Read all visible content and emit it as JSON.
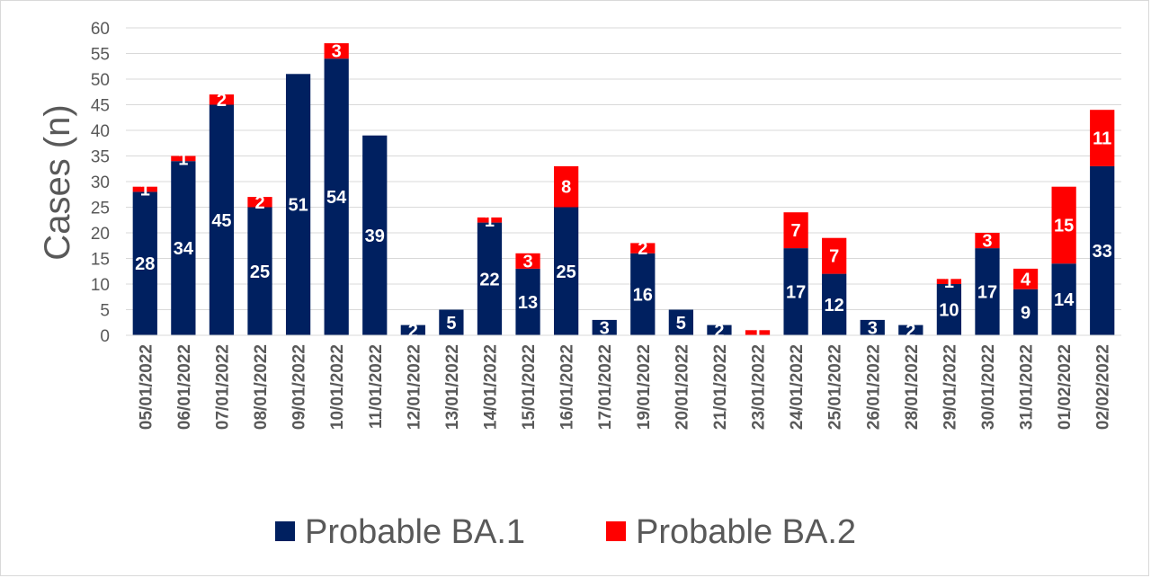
{
  "chart_data": {
    "type": "bar",
    "stacked": true,
    "title": "",
    "xlabel": "",
    "ylabel": "Cases (n)",
    "ylim": [
      0,
      60
    ],
    "y_ticks": [
      0,
      5,
      10,
      15,
      20,
      25,
      30,
      35,
      40,
      45,
      50,
      55,
      60
    ],
    "grid": true,
    "legend_position": "bottom",
    "categories": [
      "05/01/2022",
      "06/01/2022",
      "07/01/2022",
      "08/01/2022",
      "09/01/2022",
      "10/01/2022",
      "11/01/2022",
      "12/01/2022",
      "13/01/2022",
      "14/01/2022",
      "15/01/2022",
      "16/01/2022",
      "17/01/2022",
      "19/01/2022",
      "20/01/2022",
      "21/01/2022",
      "23/01/2022",
      "24/01/2022",
      "25/01/2022",
      "26/01/2022",
      "28/01/2022",
      "29/01/2022",
      "30/01/2022",
      "31/01/2022",
      "01/02/2022",
      "02/02/2022"
    ],
    "series": [
      {
        "name": "Probable BA.1",
        "color": "#002060",
        "values": [
          28,
          34,
          45,
          25,
          51,
          54,
          39,
          2,
          5,
          22,
          13,
          25,
          3,
          16,
          5,
          2,
          0,
          17,
          12,
          3,
          2,
          10,
          17,
          9,
          14,
          33
        ]
      },
      {
        "name": "Probable BA.2",
        "color": "#ff0000",
        "values": [
          1,
          1,
          2,
          2,
          0,
          3,
          0,
          0,
          0,
          1,
          3,
          8,
          0,
          2,
          0,
          0,
          1,
          7,
          7,
          0,
          0,
          1,
          3,
          4,
          15,
          11
        ]
      }
    ]
  }
}
